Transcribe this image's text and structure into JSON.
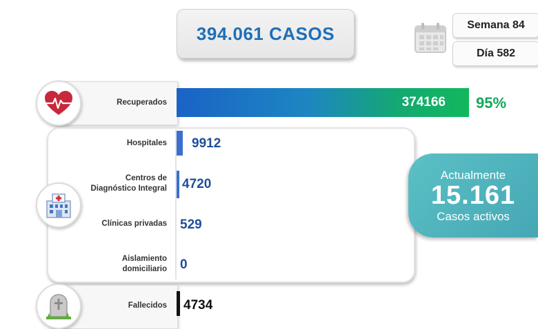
{
  "header": {
    "total_cases": "394.061 CASOS",
    "week": "Semana 84",
    "day": "Día 582"
  },
  "recovered": {
    "label": "Recuperados",
    "value": "374166",
    "percent": "95%",
    "icon": "heart-pulse-icon"
  },
  "hospitalization": {
    "icon": "hospital-icon",
    "rows": [
      {
        "label": "Hospitales",
        "value": "9912"
      },
      {
        "label_line1": "Centros de",
        "label_line2": "Diagnóstico Integral",
        "value": "4720"
      },
      {
        "label": "Clínicas privadas",
        "value": "529"
      },
      {
        "label_line1": "Aislamiento",
        "label_line2": "domiciliario",
        "value": "0"
      }
    ]
  },
  "active": {
    "top_text": "Actualmente",
    "count": "15.161",
    "bottom_text": "Casos activos"
  },
  "deceased": {
    "label": "Fallecidos",
    "value": "4734",
    "icon": "tombstone-icon"
  },
  "colors": {
    "accent_blue": "#1d6fb8",
    "recovered_green": "#14a85a",
    "active_teal": "#4fb3bd"
  }
}
